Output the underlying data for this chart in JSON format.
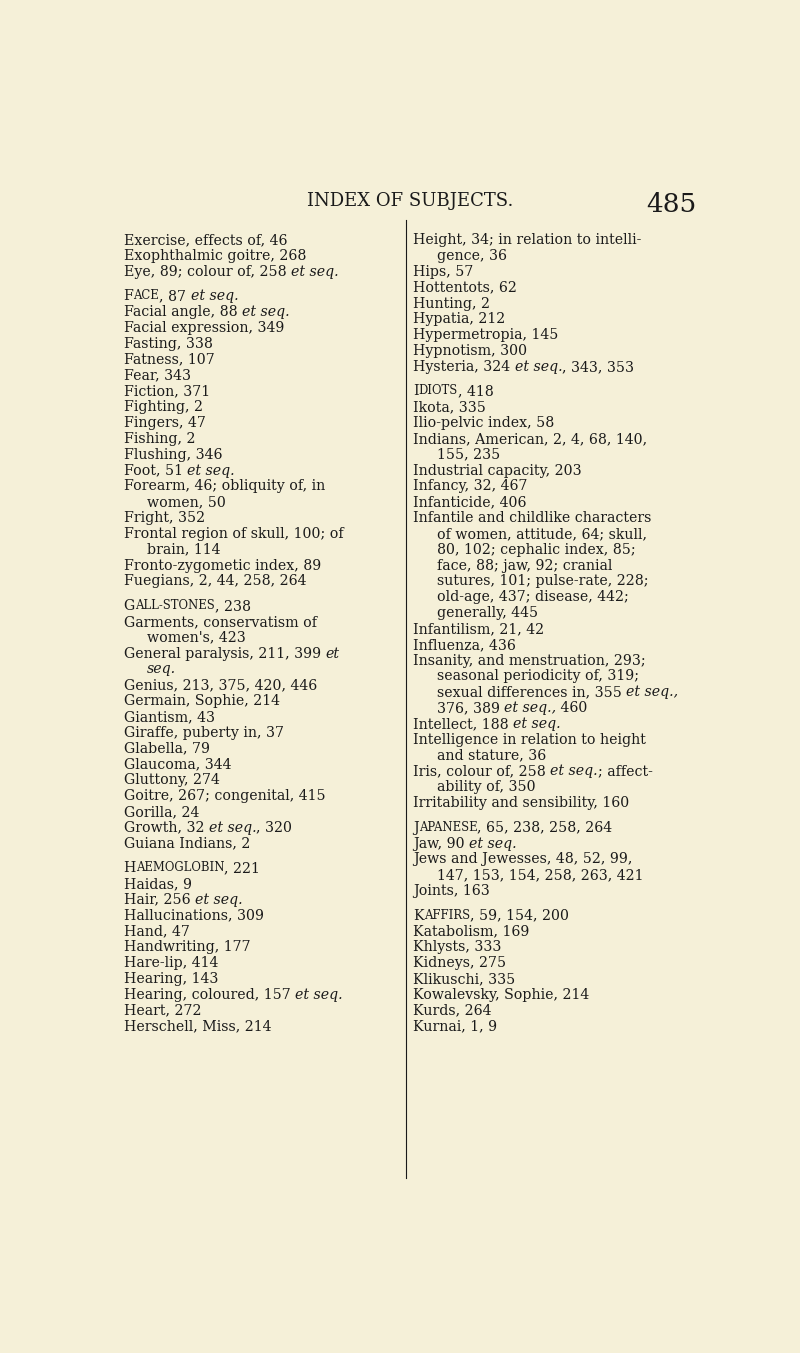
{
  "background_color": "#f5f0d8",
  "text_color": "#1a1a1a",
  "page_title": "INDEX OF SUBJECTS.",
  "page_number": "485",
  "left_column": [
    {
      "text": "Exercise, effects of, 46",
      "style": "normal",
      "indent": 0
    },
    {
      "text": "Exophthalmic goitre, 268",
      "style": "normal",
      "indent": 0
    },
    {
      "text": "Eye, 89; colour of, 258 ",
      "italic_suffix": "et seq.",
      "style": "mixed",
      "indent": 0
    },
    {
      "text": "",
      "style": "blank"
    },
    {
      "text": "Face",
      "rest": ", 87 ",
      "italic_suffix": "et seq.",
      "style": "smallcaps_mixed",
      "indent": 0
    },
    {
      "text": "Facial angle, 88 ",
      "italic_suffix": "et seq.",
      "style": "mixed",
      "indent": 0
    },
    {
      "text": "Facial expression, 349",
      "style": "normal",
      "indent": 0
    },
    {
      "text": "Fasting, 338",
      "style": "normal",
      "indent": 0
    },
    {
      "text": "Fatness, 107",
      "style": "normal",
      "indent": 0
    },
    {
      "text": "Fear, 343",
      "style": "normal",
      "indent": 0
    },
    {
      "text": "Fiction, 371",
      "style": "normal",
      "indent": 0
    },
    {
      "text": "Fighting, 2",
      "style": "normal",
      "indent": 0
    },
    {
      "text": "Fingers, 47",
      "style": "normal",
      "indent": 0
    },
    {
      "text": "Fishing, 2",
      "style": "normal",
      "indent": 0
    },
    {
      "text": "Flushing, 346",
      "style": "normal",
      "indent": 0
    },
    {
      "text": "Foot, 51 ",
      "italic_suffix": "et seq.",
      "style": "mixed",
      "indent": 0
    },
    {
      "text": "Forearm, 46; obliquity of, in",
      "style": "normal",
      "indent": 0
    },
    {
      "text": "women, 50",
      "style": "normal",
      "indent": 1
    },
    {
      "text": "Fright, 352",
      "style": "normal",
      "indent": 0
    },
    {
      "text": "Frontal region of skull, 100; of",
      "style": "normal",
      "indent": 0
    },
    {
      "text": "brain, 114",
      "style": "normal",
      "indent": 1
    },
    {
      "text": "Fronto-zygometic index, 89",
      "style": "normal",
      "indent": 0
    },
    {
      "text": "Fuegians, 2, 44, 258, 264",
      "style": "normal",
      "indent": 0
    },
    {
      "text": "",
      "style": "blank"
    },
    {
      "text": "Gall-stones",
      "rest": ", 238",
      "style": "smallcaps_rest",
      "indent": 0
    },
    {
      "text": "Garments, conservatism of",
      "style": "normal",
      "indent": 0
    },
    {
      "text": "women's, 423",
      "style": "normal",
      "indent": 1
    },
    {
      "text": "General paralysis, 211, 399 ",
      "italic_suffix": "et",
      "style": "mixed",
      "indent": 0
    },
    {
      "text": "seq.",
      "style": "italic_only",
      "indent": 1
    },
    {
      "text": "Genius, 213, 375, 420, 446",
      "style": "normal",
      "indent": 0
    },
    {
      "text": "Germain, Sophie, 214",
      "style": "normal",
      "indent": 0
    },
    {
      "text": "Giantism, 43",
      "style": "normal",
      "indent": 0
    },
    {
      "text": "Giraffe, puberty in, 37",
      "style": "normal",
      "indent": 0
    },
    {
      "text": "Glabella, 79",
      "style": "normal",
      "indent": 0
    },
    {
      "text": "Glaucoma, 344",
      "style": "normal",
      "indent": 0
    },
    {
      "text": "Gluttony, 274",
      "style": "normal",
      "indent": 0
    },
    {
      "text": "Goitre, 267; congenital, 415",
      "style": "normal",
      "indent": 0
    },
    {
      "text": "Gorilla, 24",
      "style": "normal",
      "indent": 0
    },
    {
      "text": "Growth, 32 ",
      "italic_suffix": "et seq.",
      "suffix_normal": ", 320",
      "style": "mixed",
      "indent": 0
    },
    {
      "text": "Guiana Indians, 2",
      "style": "normal",
      "indent": 0
    },
    {
      "text": "",
      "style": "blank"
    },
    {
      "text": "Haemoglobin",
      "rest": ", 221",
      "style": "smallcaps_rest",
      "indent": 0
    },
    {
      "text": "Haidas, 9",
      "style": "normal",
      "indent": 0
    },
    {
      "text": "Hair, 256 ",
      "italic_suffix": "et seq.",
      "style": "mixed",
      "indent": 0
    },
    {
      "text": "Hallucinations, 309",
      "style": "normal",
      "indent": 0
    },
    {
      "text": "Hand, 47",
      "style": "normal",
      "indent": 0
    },
    {
      "text": "Handwriting, 177",
      "style": "normal",
      "indent": 0
    },
    {
      "text": "Hare-lip, 414",
      "style": "normal",
      "indent": 0
    },
    {
      "text": "Hearing, 143",
      "style": "normal",
      "indent": 0
    },
    {
      "text": "Hearing, coloured, 157 ",
      "italic_suffix": "et seq.",
      "style": "mixed",
      "indent": 0
    },
    {
      "text": "Heart, 272",
      "style": "normal",
      "indent": 0
    },
    {
      "text": "Herschell, Miss, 214",
      "style": "normal",
      "indent": 0
    }
  ],
  "right_column": [
    {
      "text": "Height, 34; in relation to intelli-",
      "style": "normal",
      "indent": 0
    },
    {
      "text": "gence, 36",
      "style": "normal",
      "indent": 1
    },
    {
      "text": "Hips, 57",
      "style": "normal",
      "indent": 0
    },
    {
      "text": "Hottentots, 62",
      "style": "normal",
      "indent": 0
    },
    {
      "text": "Hunting, 2",
      "style": "normal",
      "indent": 0
    },
    {
      "text": "Hypatia, 212",
      "style": "normal",
      "indent": 0
    },
    {
      "text": "Hypermetropia, 145",
      "style": "normal",
      "indent": 0
    },
    {
      "text": "Hypnotism, 300",
      "style": "normal",
      "indent": 0
    },
    {
      "text": "Hysteria, 324 ",
      "italic_suffix": "et seq.",
      "suffix_normal": ", 343, 353",
      "style": "mixed",
      "indent": 0
    },
    {
      "text": "",
      "style": "blank"
    },
    {
      "text": "Idiots",
      "rest": ", 418",
      "style": "smallcaps_rest",
      "indent": 0
    },
    {
      "text": "Ikota, 335",
      "style": "normal",
      "indent": 0
    },
    {
      "text": "Ilio-pelvic index, 58",
      "style": "normal",
      "indent": 0
    },
    {
      "text": "Indians, American, 2, 4, 68, 140,",
      "style": "normal",
      "indent": 0
    },
    {
      "text": "155, 235",
      "style": "normal",
      "indent": 1
    },
    {
      "text": "Industrial capacity, 203",
      "style": "normal",
      "indent": 0
    },
    {
      "text": "Infancy, 32, 467",
      "style": "normal",
      "indent": 0
    },
    {
      "text": "Infanticide, 406",
      "style": "normal",
      "indent": 0
    },
    {
      "text": "Infantile and childlike characters",
      "style": "normal",
      "indent": 0
    },
    {
      "text": "of women, attitude, 64; skull,",
      "style": "normal",
      "indent": 1
    },
    {
      "text": "80, 102; cephalic index, 85;",
      "style": "normal",
      "indent": 1
    },
    {
      "text": "face, 88; jaw, 92; cranial",
      "style": "normal",
      "indent": 1
    },
    {
      "text": "sutures, 101; pulse-rate, 228;",
      "style": "normal",
      "indent": 1
    },
    {
      "text": "old-age, 437; disease, 442;",
      "style": "normal",
      "indent": 1
    },
    {
      "text": "generally, 445",
      "style": "normal",
      "indent": 1
    },
    {
      "text": "Infantilism, 21, 42",
      "style": "normal",
      "indent": 0
    },
    {
      "text": "Influenza, 436",
      "style": "normal",
      "indent": 0
    },
    {
      "text": "Insanity, and menstruation, 293;",
      "style": "normal",
      "indent": 0
    },
    {
      "text": "seasonal periodicity of, 319;",
      "style": "normal",
      "indent": 1
    },
    {
      "text": "sexual differences in, 355 ",
      "italic_suffix": "et seq.,",
      "style": "mixed",
      "indent": 1
    },
    {
      "text": "376, 389 ",
      "italic_suffix": "et seq.,",
      "suffix_normal": " 460",
      "style": "mixed",
      "indent": 1
    },
    {
      "text": "Intellect, 188 ",
      "italic_suffix": "et seq.",
      "style": "mixed",
      "indent": 0
    },
    {
      "text": "Intelligence in relation to height",
      "style": "normal",
      "indent": 0
    },
    {
      "text": "and stature, 36",
      "style": "normal",
      "indent": 1
    },
    {
      "text": "Iris, colour of, 258 ",
      "italic_suffix": "et seq.",
      "suffix_normal": "; affect-",
      "style": "mixed",
      "indent": 0
    },
    {
      "text": "ability of, 350",
      "style": "normal",
      "indent": 1
    },
    {
      "text": "Irritability and sensibility, 160",
      "style": "normal",
      "indent": 0
    },
    {
      "text": "",
      "style": "blank"
    },
    {
      "text": "Japanese",
      "rest": ", 65, 238, 258, 264",
      "style": "smallcaps_rest",
      "indent": 0
    },
    {
      "text": "Jaw, 90 ",
      "italic_suffix": "et seq.",
      "style": "mixed",
      "indent": 0
    },
    {
      "text": "Jews and Jewesses, 48, 52, 99,",
      "style": "normal",
      "indent": 0
    },
    {
      "text": "147, 153, 154, 258, 263, 421",
      "style": "normal",
      "indent": 1
    },
    {
      "text": "Joints, 163",
      "style": "normal",
      "indent": 0
    },
    {
      "text": "",
      "style": "blank"
    },
    {
      "text": "Kaffirs",
      "rest": ", 59, 154, 200",
      "style": "smallcaps_rest",
      "indent": 0
    },
    {
      "text": "Katabolism, 169",
      "style": "normal",
      "indent": 0
    },
    {
      "text": "Khlysts, 333",
      "style": "normal",
      "indent": 0
    },
    {
      "text": "Kidneys, 275",
      "style": "normal",
      "indent": 0
    },
    {
      "text": "Klikuschi, 335",
      "style": "normal",
      "indent": 0
    },
    {
      "text": "Kowalevsky, Sophie, 214",
      "style": "normal",
      "indent": 0
    },
    {
      "text": "Kurds, 264",
      "style": "normal",
      "indent": 0
    },
    {
      "text": "Kurnai, 1, 9",
      "style": "normal",
      "indent": 0
    }
  ]
}
